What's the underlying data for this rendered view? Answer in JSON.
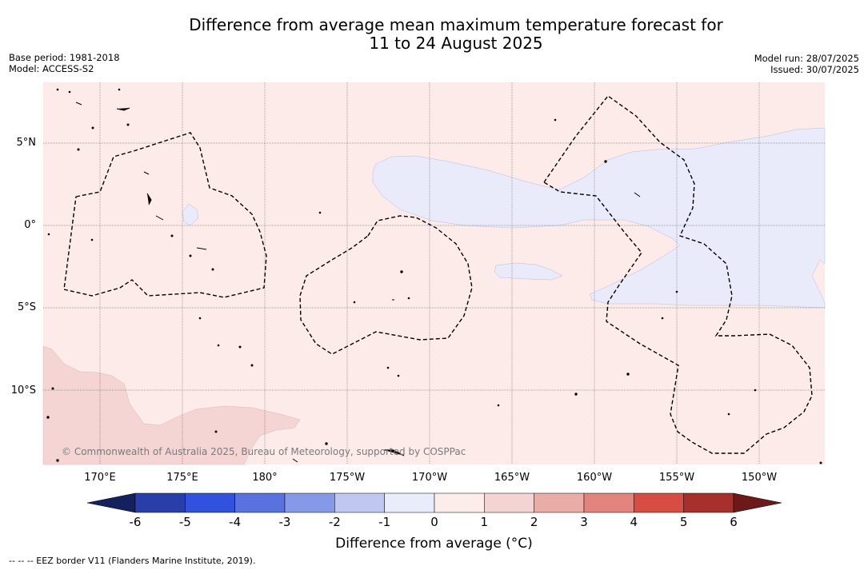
{
  "title_line1": "Difference from average mean maximum temperature forecast for",
  "title_line2": "11 to 24 August 2025",
  "base_period": "Base period: 1981-2018",
  "model": "Model: ACCESS-S2",
  "model_run": "Model run: 28/07/2025",
  "issued": "Issued: 30/07/2025",
  "latitude_labels": [
    "5°N",
    "0°",
    "5°S",
    "10°S"
  ],
  "longitude_labels": [
    "170°E",
    "175°E",
    "180°",
    "175°W",
    "170°W",
    "165°W",
    "160°W",
    "155°W",
    "150°W"
  ],
  "copyright": "© Commonwealth of Australia 2025, Bureau of Meteorology, supported by COSPPac",
  "colorbar": {
    "title": "Difference from average (°C)",
    "tick_labels": [
      "-6",
      "-5",
      "-4",
      "-3",
      "-2",
      "-1",
      "0",
      "1",
      "2",
      "3",
      "4",
      "5",
      "6"
    ],
    "colors": [
      "#15215f",
      "#2a3eaa",
      "#3151df",
      "#5a72e0",
      "#8599e8",
      "#bfc8f1",
      "#e9ecfb",
      "#fcecea",
      "#f4d4d2",
      "#eaaca6",
      "#e3837d",
      "#d84d43",
      "#a8302a",
      "#6e1919"
    ]
  },
  "footnote": "-- -- -- EEZ border V11 (Flanders Marine Institute, 2019).",
  "colors": {
    "background_warm": "#fcebe9",
    "cool_anomaly": "#e9ebfb",
    "land_warm": "#f4d5d3",
    "eez_line": "#000000",
    "grid": "#555555"
  }
}
